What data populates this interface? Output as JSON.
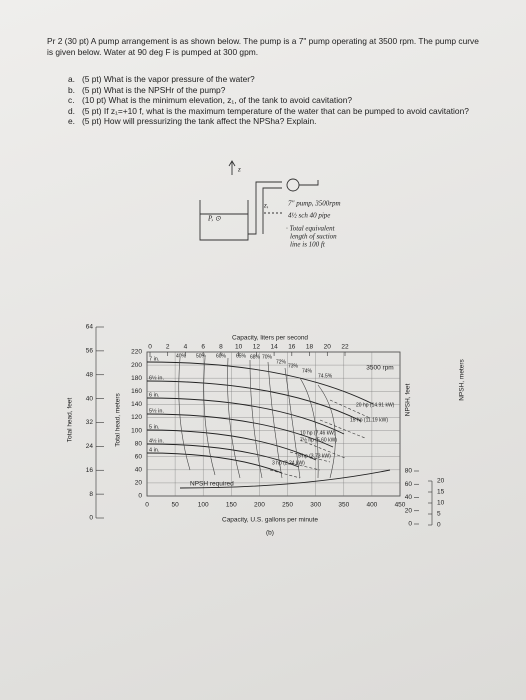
{
  "problem": {
    "header": "Pr 2 (30 pt) A pump arrangement is as shown below. The pump is a 7\" pump operating at 3500 rpm. The pump curve is given below. Water at 90 deg F is pumped at 300 gpm.",
    "questions": [
      {
        "label": "a.",
        "text": "(5 pt) What is the vapor pressure of the water?"
      },
      {
        "label": "b.",
        "text": "(5 pt) What is the NPSHr of the pump?"
      },
      {
        "label": "c.",
        "text": "(10 pt) What is the minimum elevation, z₁, of the tank to avoid cavitation?"
      },
      {
        "label": "d.",
        "text": "(5 pt) If z₁=+10 f, what is the maximum temperature of the water that can be pumped to avoid cavitation?"
      },
      {
        "label": "e.",
        "text": "(5 pt) How will pressurizing the tank affect the NPSha? Explain."
      }
    ]
  },
  "sketch": {
    "z_axis": "z",
    "tank": "P, ⊙",
    "z1": "z,",
    "pump": "7\" pump, 3500rpm",
    "pipe": "4½ sch 40 pipe",
    "note": [
      "· Total equivalent",
      "length of suction",
      "line is 100 ft"
    ]
  },
  "figure": {
    "top_title": "Capacity, liters per second",
    "bottom_title": "Capacity, U.S. gallons per minute",
    "caption": "(b)",
    "left_outer_title": "Total head, feet",
    "left_inner_title": "Total head, meters",
    "right_inner_title": "NPSH, feet",
    "right_outer_title": "NPSH, meters",
    "top_ticks": [
      0,
      2,
      4,
      6,
      8,
      10,
      12,
      14,
      16,
      18,
      20,
      22
    ],
    "bottom_ticks": [
      0,
      50,
      100,
      150,
      200,
      250,
      300,
      350,
      400,
      450
    ],
    "left_inner_ticks": [
      0,
      20,
      40,
      60,
      80,
      100,
      120,
      140,
      160,
      180,
      200,
      220
    ],
    "left_outer_ticks": [
      0,
      8,
      16,
      24,
      32,
      40,
      48,
      56,
      64
    ],
    "right_inner_ticks": [
      0,
      20,
      40,
      60,
      80
    ],
    "right_outer_ticks": [
      0,
      5,
      10,
      15,
      20
    ],
    "impellers": [
      "7 in.",
      "6½ in.",
      "6 in.",
      "5½ in.",
      "5 in.",
      "4½ in.",
      "4 in."
    ],
    "speed": "3500 rpm",
    "efficiencies": [
      "40%",
      "50%",
      "60%",
      "65%",
      "68%",
      "70%",
      "72%",
      "73%",
      "74%",
      "74.5%"
    ],
    "powers": [
      "20 hp (14.91 kW)",
      "15 hp (11.19 kW)",
      "10 hp (7.46 kW)",
      "7½ hp (5.60 kW)",
      "5 hp (3.73 kW)",
      "3 hp (2.24 kW)"
    ],
    "npsh_label": "NPSH required"
  }
}
